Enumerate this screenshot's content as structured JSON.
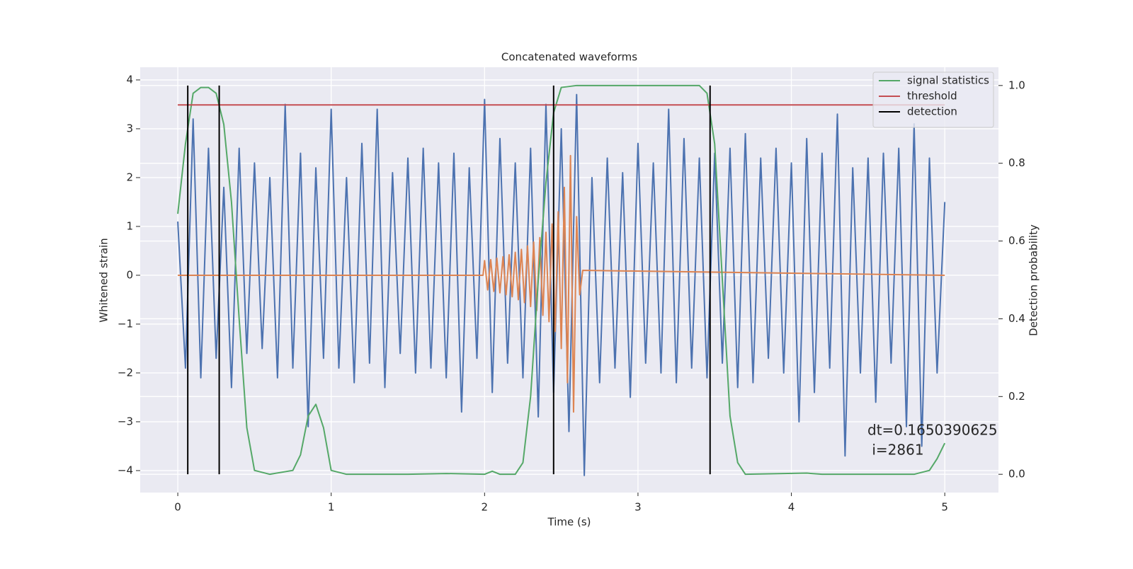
{
  "chart_data": {
    "type": "line",
    "title": "Concatenated waveforms",
    "x_label": "Time (s)",
    "y_label": "Whitened strain",
    "y2_label": "Detection probability",
    "xlim": [
      -0.245,
      5.35
    ],
    "xticks": [
      0,
      1,
      2,
      3,
      4,
      5
    ],
    "ylim": [
      -4.45,
      4.26
    ],
    "yticks": [
      -4,
      -3,
      -2,
      -1,
      0,
      1,
      2,
      3,
      4
    ],
    "y2lim": [
      -0.047,
      1.047
    ],
    "y2ticks": [
      0.0,
      0.2,
      0.4,
      0.6,
      0.8,
      1.0
    ],
    "grid": true,
    "legend": "upper right",
    "annotation": [
      "dt=0.1650390625",
      " i=2861"
    ],
    "series": [
      {
        "color": "#4c72b0",
        "axis": "y",
        "x": [
          0,
          0.05,
          0.1,
          0.15,
          0.2,
          0.25,
          0.3,
          0.35,
          0.4,
          0.45,
          0.5,
          0.55,
          0.6,
          0.65,
          0.7,
          0.75,
          0.8,
          0.85,
          0.9,
          0.95,
          1,
          1.05,
          1.1,
          1.15,
          1.2,
          1.25,
          1.3,
          1.35,
          1.4,
          1.45,
          1.5,
          1.55,
          1.6,
          1.65,
          1.7,
          1.75,
          1.8,
          1.85,
          1.9,
          1.95,
          2,
          2.05,
          2.1,
          2.15,
          2.2,
          2.25,
          2.3,
          2.35,
          2.4,
          2.45,
          2.5,
          2.55,
          2.6,
          2.65,
          2.7,
          2.75,
          2.8,
          2.85,
          2.9,
          2.95,
          3,
          3.05,
          3.1,
          3.15,
          3.2,
          3.25,
          3.3,
          3.35,
          3.4,
          3.45,
          3.5,
          3.55,
          3.6,
          3.65,
          3.7,
          3.75,
          3.8,
          3.85,
          3.9,
          3.95,
          4,
          4.05,
          4.1,
          4.15,
          4.2,
          4.25,
          4.3,
          4.35,
          4.4,
          4.45,
          4.5,
          4.55,
          4.6,
          4.65,
          4.7,
          4.75,
          4.8,
          4.85,
          4.9,
          4.95,
          5
        ],
        "values": [
          1.1,
          -1.9,
          3.2,
          -2.1,
          2.6,
          -1.7,
          1.8,
          -2.3,
          2.6,
          -1.6,
          2.3,
          -1.5,
          2.0,
          -2.1,
          3.5,
          -1.9,
          2.5,
          -3.1,
          2.2,
          -1.7,
          3.4,
          -1.9,
          2.0,
          -2.2,
          2.7,
          -1.8,
          3.4,
          -2.3,
          2.1,
          -1.6,
          2.4,
          -2.0,
          2.6,
          -1.9,
          2.3,
          -2.1,
          2.5,
          -2.8,
          2.2,
          -1.7,
          3.6,
          -2.4,
          2.8,
          -1.8,
          2.3,
          -2.1,
          2.6,
          -2.9,
          3.5,
          -2.4,
          3.0,
          -3.2,
          3.7,
          -4.1,
          2.0,
          -2.2,
          2.4,
          -1.9,
          2.1,
          -2.5,
          2.7,
          -1.8,
          2.3,
          -2.0,
          3.4,
          -2.2,
          2.8,
          -1.9,
          2.4,
          -2.1,
          2.5,
          -1.8,
          2.6,
          -2.3,
          2.9,
          -2.2,
          2.4,
          -1.7,
          2.6,
          -2.0,
          2.3,
          -3.0,
          2.8,
          -2.4,
          2.5,
          -1.9,
          3.3,
          -3.7,
          2.2,
          -2.0,
          2.4,
          -2.6,
          2.5,
          -1.8,
          2.6,
          -3.1,
          3.1,
          -3.5,
          2.4,
          -2.0,
          1.5
        ]
      },
      {
        "color": "#dd8452",
        "axis": "y",
        "x": [
          0,
          1.99,
          2.0,
          2.02,
          2.04,
          2.06,
          2.08,
          2.1,
          2.12,
          2.14,
          2.16,
          2.18,
          2.2,
          2.22,
          2.24,
          2.26,
          2.28,
          2.3,
          2.32,
          2.34,
          2.36,
          2.38,
          2.4,
          2.42,
          2.44,
          2.46,
          2.48,
          2.5,
          2.52,
          2.54,
          2.56,
          2.58,
          2.6,
          2.62,
          2.64,
          5
        ],
        "values": [
          0,
          0,
          0.3,
          -0.3,
          0.32,
          -0.33,
          0.35,
          -0.36,
          0.38,
          -0.4,
          0.42,
          -0.44,
          0.47,
          -0.5,
          0.53,
          -0.56,
          0.6,
          -0.64,
          0.68,
          -0.72,
          0.77,
          -0.82,
          0.88,
          -0.95,
          1.05,
          -1.15,
          1.3,
          -1.5,
          1.8,
          -2.2,
          2.45,
          -2.8,
          1.2,
          -0.4,
          0.1,
          0
        ]
      },
      {
        "name": "signal statistics",
        "color": "#55a868",
        "axis": "y2",
        "x": [
          0,
          0.05,
          0.1,
          0.15,
          0.2,
          0.25,
          0.3,
          0.35,
          0.4,
          0.45,
          0.5,
          0.6,
          0.75,
          0.8,
          0.85,
          0.9,
          0.95,
          1.0,
          1.1,
          1.5,
          1.75,
          2.0,
          2.05,
          2.1,
          2.2,
          2.25,
          2.3,
          2.35,
          2.4,
          2.45,
          2.5,
          2.6,
          3.0,
          3.4,
          3.45,
          3.5,
          3.55,
          3.6,
          3.65,
          3.7,
          4.1,
          4.2,
          4.8,
          4.9,
          4.95,
          5.0
        ],
        "values": [
          0.67,
          0.85,
          0.98,
          0.995,
          0.995,
          0.98,
          0.9,
          0.7,
          0.4,
          0.12,
          0.01,
          0.0,
          0.01,
          0.05,
          0.15,
          0.18,
          0.12,
          0.01,
          0.0,
          0.0,
          0.002,
          0.0,
          0.008,
          0.0,
          0.0,
          0.03,
          0.2,
          0.5,
          0.75,
          0.93,
          0.995,
          1.0,
          1.0,
          1.0,
          0.98,
          0.85,
          0.5,
          0.15,
          0.03,
          0.0,
          0.003,
          0.0,
          0.0,
          0.01,
          0.04,
          0.08
        ]
      },
      {
        "name": "threshold",
        "color": "#c44e52",
        "axis": "y2",
        "x": [
          0,
          5
        ],
        "values": [
          0.95,
          0.95
        ]
      },
      {
        "name": "detection",
        "color": "#000000",
        "axis": "y2",
        "type": "vline",
        "x": [
          0.065,
          0.27,
          2.45,
          3.47
        ],
        "ymin": 0,
        "ymax": 1
      }
    ]
  }
}
